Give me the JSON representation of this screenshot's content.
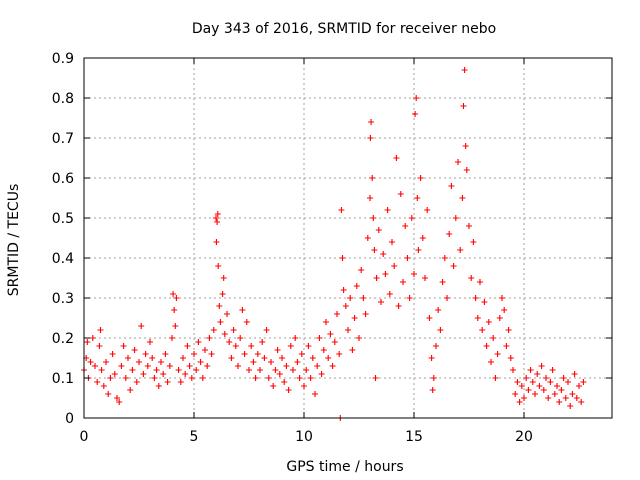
{
  "chart_data": {
    "type": "scatter",
    "title": "Day 343 of 2016, SRMTID for receiver nebo",
    "xlabel": "GPS time / hours",
    "ylabel": "SRMTID / TECUs",
    "xlim": [
      0,
      24
    ],
    "ylim": [
      0,
      0.9
    ],
    "xticks": [
      0,
      5,
      10,
      15,
      20
    ],
    "xtick_labels": [
      "0",
      "5",
      "10",
      "15",
      "20"
    ],
    "yticks": [
      0,
      0.1,
      0.2,
      0.3,
      0.4,
      0.5,
      0.6,
      0.7,
      0.8,
      0.9
    ],
    "ytick_labels": [
      "0",
      "0.1",
      "0.2",
      "0.3",
      "0.4",
      "0.5",
      "0.6",
      "0.7",
      "0.8",
      "0.9"
    ],
    "grid": true,
    "marker": "+",
    "color": "#ff0000",
    "series": [
      {
        "name": "SRMTID",
        "points": [
          [
            0.0,
            0.12
          ],
          [
            0.1,
            0.15
          ],
          [
            0.15,
            0.19
          ],
          [
            0.2,
            0.1
          ],
          [
            0.3,
            0.14
          ],
          [
            0.4,
            0.2
          ],
          [
            0.5,
            0.13
          ],
          [
            0.6,
            0.09
          ],
          [
            0.7,
            0.18
          ],
          [
            0.75,
            0.22
          ],
          [
            0.8,
            0.12
          ],
          [
            0.9,
            0.08
          ],
          [
            1.0,
            0.14
          ],
          [
            1.1,
            0.06
          ],
          [
            1.2,
            0.1
          ],
          [
            1.3,
            0.16
          ],
          [
            1.4,
            0.11
          ],
          [
            1.5,
            0.05
          ],
          [
            1.6,
            0.04
          ],
          [
            1.7,
            0.13
          ],
          [
            1.8,
            0.18
          ],
          [
            1.9,
            0.1
          ],
          [
            2.0,
            0.15
          ],
          [
            2.1,
            0.07
          ],
          [
            2.2,
            0.12
          ],
          [
            2.3,
            0.17
          ],
          [
            2.4,
            0.09
          ],
          [
            2.5,
            0.14
          ],
          [
            2.6,
            0.23
          ],
          [
            2.7,
            0.11
          ],
          [
            2.8,
            0.16
          ],
          [
            2.9,
            0.13
          ],
          [
            3.0,
            0.19
          ],
          [
            3.1,
            0.15
          ],
          [
            3.2,
            0.1
          ],
          [
            3.3,
            0.12
          ],
          [
            3.4,
            0.08
          ],
          [
            3.5,
            0.14
          ],
          [
            3.6,
            0.11
          ],
          [
            3.7,
            0.16
          ],
          [
            3.8,
            0.09
          ],
          [
            3.9,
            0.13
          ],
          [
            4.0,
            0.2
          ],
          [
            4.05,
            0.31
          ],
          [
            4.1,
            0.27
          ],
          [
            4.15,
            0.23
          ],
          [
            4.2,
            0.3
          ],
          [
            4.3,
            0.12
          ],
          [
            4.4,
            0.09
          ],
          [
            4.5,
            0.15
          ],
          [
            4.6,
            0.11
          ],
          [
            4.7,
            0.18
          ],
          [
            4.8,
            0.13
          ],
          [
            4.9,
            0.1
          ],
          [
            5.0,
            0.16
          ],
          [
            5.1,
            0.12
          ],
          [
            5.2,
            0.19
          ],
          [
            5.3,
            0.14
          ],
          [
            5.4,
            0.1
          ],
          [
            5.5,
            0.17
          ],
          [
            5.6,
            0.13
          ],
          [
            5.7,
            0.2
          ],
          [
            5.8,
            0.16
          ],
          [
            5.9,
            0.22
          ],
          [
            6.0,
            0.5
          ],
          [
            6.02,
            0.44
          ],
          [
            6.05,
            0.49
          ],
          [
            6.08,
            0.51
          ],
          [
            6.1,
            0.38
          ],
          [
            6.15,
            0.28
          ],
          [
            6.2,
            0.24
          ],
          [
            6.3,
            0.31
          ],
          [
            6.35,
            0.35
          ],
          [
            6.4,
            0.21
          ],
          [
            6.5,
            0.26
          ],
          [
            6.6,
            0.19
          ],
          [
            6.7,
            0.15
          ],
          [
            6.8,
            0.22
          ],
          [
            6.9,
            0.18
          ],
          [
            7.0,
            0.13
          ],
          [
            7.1,
            0.2
          ],
          [
            7.2,
            0.27
          ],
          [
            7.3,
            0.16
          ],
          [
            7.4,
            0.24
          ],
          [
            7.5,
            0.12
          ],
          [
            7.6,
            0.18
          ],
          [
            7.7,
            0.14
          ],
          [
            7.8,
            0.1
          ],
          [
            7.9,
            0.16
          ],
          [
            8.0,
            0.12
          ],
          [
            8.1,
            0.19
          ],
          [
            8.2,
            0.15
          ],
          [
            8.3,
            0.22
          ],
          [
            8.4,
            0.1
          ],
          [
            8.5,
            0.14
          ],
          [
            8.6,
            0.08
          ],
          [
            8.7,
            0.12
          ],
          [
            8.8,
            0.17
          ],
          [
            8.9,
            0.11
          ],
          [
            9.0,
            0.15
          ],
          [
            9.1,
            0.09
          ],
          [
            9.2,
            0.13
          ],
          [
            9.3,
            0.07
          ],
          [
            9.4,
            0.18
          ],
          [
            9.5,
            0.12
          ],
          [
            9.6,
            0.2
          ],
          [
            9.7,
            0.14
          ],
          [
            9.8,
            0.1
          ],
          [
            9.9,
            0.16
          ],
          [
            10.0,
            0.08
          ],
          [
            10.1,
            0.12
          ],
          [
            10.2,
            0.18
          ],
          [
            10.3,
            0.1
          ],
          [
            10.4,
            0.15
          ],
          [
            10.5,
            0.06
          ],
          [
            10.6,
            0.13
          ],
          [
            10.7,
            0.2
          ],
          [
            10.8,
            0.11
          ],
          [
            10.9,
            0.17
          ],
          [
            11.0,
            0.24
          ],
          [
            11.1,
            0.15
          ],
          [
            11.2,
            0.21
          ],
          [
            11.3,
            0.13
          ],
          [
            11.4,
            0.19
          ],
          [
            11.5,
            0.26
          ],
          [
            11.6,
            0.16
          ],
          [
            11.65,
            0.0
          ],
          [
            11.7,
            0.52
          ],
          [
            11.75,
            0.4
          ],
          [
            11.8,
            0.32
          ],
          [
            11.9,
            0.28
          ],
          [
            12.0,
            0.22
          ],
          [
            12.1,
            0.3
          ],
          [
            12.2,
            0.17
          ],
          [
            12.3,
            0.25
          ],
          [
            12.4,
            0.33
          ],
          [
            12.5,
            0.2
          ],
          [
            12.6,
            0.37
          ],
          [
            12.7,
            0.3
          ],
          [
            12.8,
            0.26
          ],
          [
            12.9,
            0.45
          ],
          [
            13.0,
            0.55
          ],
          [
            13.02,
            0.7
          ],
          [
            13.05,
            0.74
          ],
          [
            13.1,
            0.6
          ],
          [
            13.15,
            0.5
          ],
          [
            13.2,
            0.42
          ],
          [
            13.25,
            0.1
          ],
          [
            13.3,
            0.35
          ],
          [
            13.4,
            0.47
          ],
          [
            13.5,
            0.29
          ],
          [
            13.6,
            0.41
          ],
          [
            13.7,
            0.36
          ],
          [
            13.8,
            0.52
          ],
          [
            13.9,
            0.31
          ],
          [
            14.0,
            0.44
          ],
          [
            14.1,
            0.38
          ],
          [
            14.2,
            0.65
          ],
          [
            14.3,
            0.28
          ],
          [
            14.4,
            0.56
          ],
          [
            14.5,
            0.34
          ],
          [
            14.6,
            0.48
          ],
          [
            14.7,
            0.4
          ],
          [
            14.8,
            0.3
          ],
          [
            14.9,
            0.5
          ],
          [
            15.0,
            0.36
          ],
          [
            15.05,
            0.76
          ],
          [
            15.1,
            0.8
          ],
          [
            15.15,
            0.55
          ],
          [
            15.2,
            0.42
          ],
          [
            15.3,
            0.6
          ],
          [
            15.4,
            0.45
          ],
          [
            15.5,
            0.35
          ],
          [
            15.6,
            0.52
          ],
          [
            15.7,
            0.25
          ],
          [
            15.8,
            0.15
          ],
          [
            15.85,
            0.07
          ],
          [
            15.9,
            0.1
          ],
          [
            16.0,
            0.18
          ],
          [
            16.1,
            0.27
          ],
          [
            16.2,
            0.22
          ],
          [
            16.3,
            0.34
          ],
          [
            16.4,
            0.4
          ],
          [
            16.5,
            0.3
          ],
          [
            16.6,
            0.46
          ],
          [
            16.7,
            0.58
          ],
          [
            16.8,
            0.38
          ],
          [
            16.9,
            0.5
          ],
          [
            17.0,
            0.64
          ],
          [
            17.1,
            0.42
          ],
          [
            17.2,
            0.55
          ],
          [
            17.25,
            0.78
          ],
          [
            17.3,
            0.87
          ],
          [
            17.35,
            0.68
          ],
          [
            17.4,
            0.62
          ],
          [
            17.5,
            0.48
          ],
          [
            17.6,
            0.35
          ],
          [
            17.7,
            0.44
          ],
          [
            17.8,
            0.3
          ],
          [
            17.9,
            0.25
          ],
          [
            18.0,
            0.34
          ],
          [
            18.1,
            0.22
          ],
          [
            18.2,
            0.29
          ],
          [
            18.3,
            0.18
          ],
          [
            18.4,
            0.24
          ],
          [
            18.5,
            0.14
          ],
          [
            18.6,
            0.2
          ],
          [
            18.7,
            0.1
          ],
          [
            18.8,
            0.16
          ],
          [
            18.9,
            0.25
          ],
          [
            19.0,
            0.3
          ],
          [
            19.1,
            0.27
          ],
          [
            19.2,
            0.18
          ],
          [
            19.3,
            0.22
          ],
          [
            19.4,
            0.15
          ],
          [
            19.5,
            0.12
          ],
          [
            19.6,
            0.06
          ],
          [
            19.7,
            0.09
          ],
          [
            19.8,
            0.04
          ],
          [
            19.9,
            0.08
          ],
          [
            20.0,
            0.05
          ],
          [
            20.1,
            0.1
          ],
          [
            20.2,
            0.07
          ],
          [
            20.3,
            0.12
          ],
          [
            20.4,
            0.09
          ],
          [
            20.5,
            0.06
          ],
          [
            20.6,
            0.11
          ],
          [
            20.7,
            0.08
          ],
          [
            20.8,
            0.13
          ],
          [
            20.9,
            0.07
          ],
          [
            21.0,
            0.1
          ],
          [
            21.1,
            0.05
          ],
          [
            21.2,
            0.09
          ],
          [
            21.3,
            0.12
          ],
          [
            21.4,
            0.06
          ],
          [
            21.5,
            0.08
          ],
          [
            21.6,
            0.04
          ],
          [
            21.7,
            0.07
          ],
          [
            21.8,
            0.1
          ],
          [
            21.9,
            0.05
          ],
          [
            22.0,
            0.09
          ],
          [
            22.1,
            0.03
          ],
          [
            22.2,
            0.06
          ],
          [
            22.3,
            0.11
          ],
          [
            22.4,
            0.05
          ],
          [
            22.5,
            0.08
          ],
          [
            22.6,
            0.04
          ],
          [
            22.7,
            0.09
          ]
        ]
      }
    ]
  }
}
